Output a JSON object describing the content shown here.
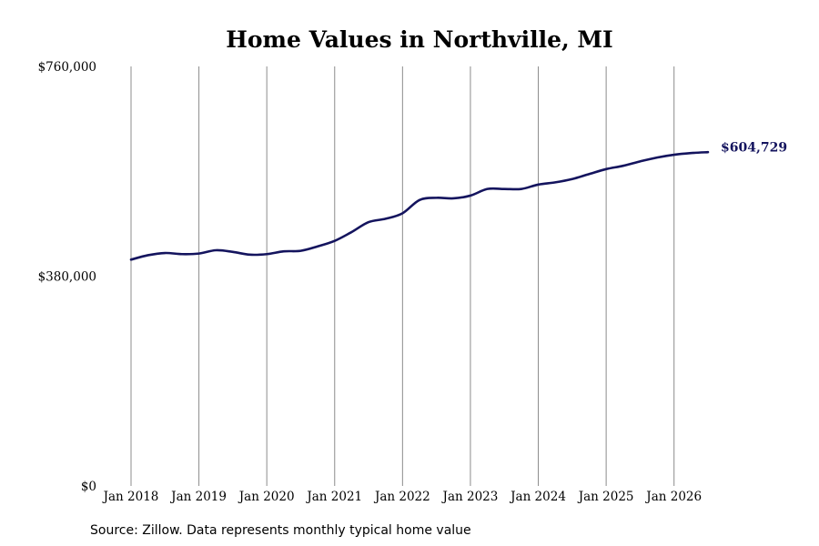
{
  "chart_data": {
    "type": "line",
    "title": "Home Values in Northville, MI",
    "xlabel": "",
    "ylabel": "",
    "ylim": [
      0,
      760000
    ],
    "xlim": [
      "2018-01",
      "2026-07"
    ],
    "y_ticks": [
      0,
      380000,
      760000
    ],
    "y_tick_labels": [
      "$0",
      "$380,000",
      "$760,000"
    ],
    "x_ticks": [
      "2018-01",
      "2019-01",
      "2020-01",
      "2021-01",
      "2022-01",
      "2023-01",
      "2024-01",
      "2025-01",
      "2026-01"
    ],
    "x_tick_labels": [
      "Jan 2018",
      "Jan 2019",
      "Jan 2020",
      "Jan 2021",
      "Jan 2022",
      "Jan 2023",
      "Jan 2024",
      "Jan 2025",
      "Jan 2026"
    ],
    "grid": "vertical",
    "legend": "none",
    "colors": {
      "line": "#14145e",
      "end_label": "#14145e",
      "grid": "#8c8c8c"
    },
    "series": [
      {
        "x": [
          "2018-01",
          "2018-04",
          "2018-07",
          "2018-10",
          "2019-01",
          "2019-04",
          "2019-07",
          "2019-10",
          "2020-01",
          "2020-04",
          "2020-07",
          "2020-10",
          "2021-01",
          "2021-04",
          "2021-07",
          "2021-10",
          "2022-01",
          "2022-04",
          "2022-07",
          "2022-10",
          "2023-01",
          "2023-04",
          "2023-07",
          "2023-10",
          "2024-01",
          "2024-04",
          "2024-07",
          "2024-10",
          "2025-01",
          "2025-04",
          "2025-07",
          "2025-10",
          "2026-01",
          "2026-04",
          "2026-07"
        ],
        "values": [
          410000,
          418000,
          422000,
          420000,
          421000,
          427000,
          424000,
          419000,
          420000,
          425000,
          426000,
          434000,
          444000,
          460000,
          478000,
          484000,
          494000,
          518000,
          522000,
          521000,
          526000,
          538000,
          538000,
          538000,
          546000,
          550000,
          556000,
          565000,
          574000,
          580000,
          588000,
          595000,
          600000,
          603000,
          604729
        ]
      }
    ],
    "end_label": "$604,729"
  },
  "footer": {
    "source": "Source: Zillow. Data represents monthly typical home value"
  }
}
